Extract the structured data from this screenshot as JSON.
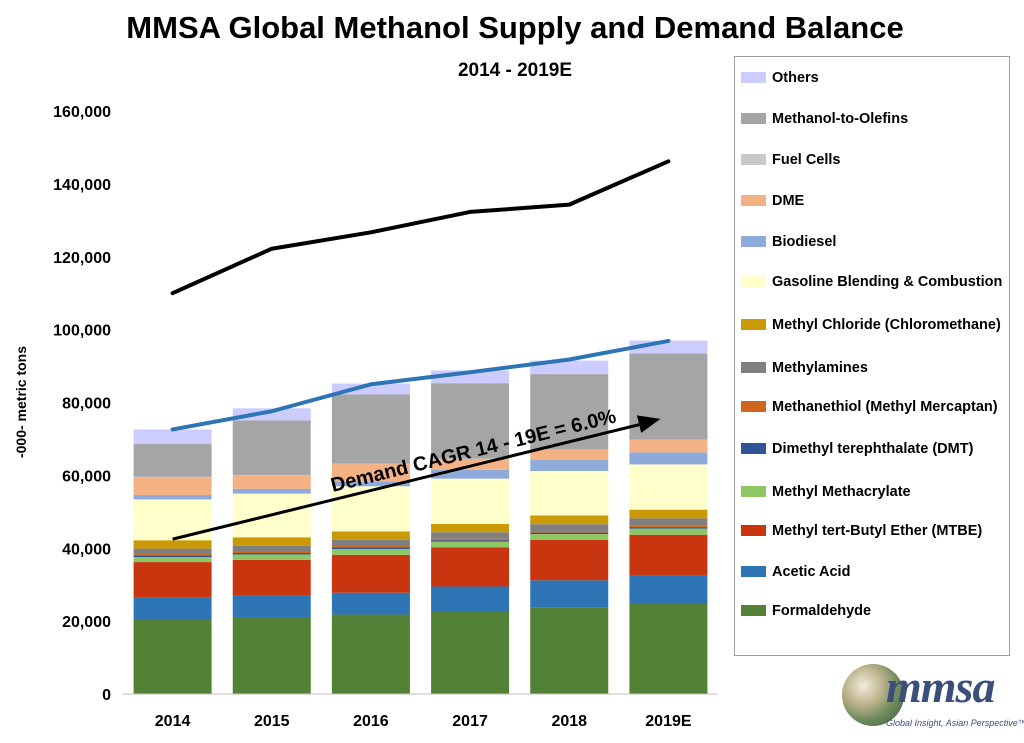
{
  "chart_data": {
    "type": "bar",
    "stacked": true,
    "title": "MMSA Global Methanol Supply and Demand Balance",
    "subtitle": "2014 - 2019E",
    "ylabel": "-000- metric tons",
    "xlabel": "",
    "ylim": [
      0,
      160000
    ],
    "yticks": [
      0,
      20000,
      40000,
      60000,
      80000,
      100000,
      120000,
      140000,
      160000
    ],
    "ytick_labels": [
      "0",
      "20,000",
      "40,000",
      "60,000",
      "80,000",
      "100,000",
      "120,000",
      "140,000",
      "160,000"
    ],
    "grid": false,
    "legend_position": "right",
    "categories": [
      "2014",
      "2015",
      "2016",
      "2017",
      "2018",
      "2019E"
    ],
    "series": [
      {
        "name": "Formaldehyde",
        "color": "#538135",
        "values": [
          20300,
          21000,
          21800,
          22500,
          23700,
          24700
        ]
      },
      {
        "name": "Acetic Acid",
        "color": "#2e75b6",
        "values": [
          6100,
          6000,
          6000,
          7000,
          7500,
          7800
        ]
      },
      {
        "name": "Methyl tert-Butyl Ether (MTBE)",
        "color": "#c9350f",
        "values": [
          9800,
          9800,
          10400,
          10700,
          11100,
          11200
        ]
      },
      {
        "name": "Methyl Methacrylate",
        "color": "#8cc665",
        "values": [
          1400,
          1500,
          1600,
          1600,
          1600,
          1700
        ]
      },
      {
        "name": "Dimethyl terephthalate (DMT)",
        "color": "#2f5597",
        "values": [
          400,
          400,
          400,
          400,
          400,
          400
        ]
      },
      {
        "name": "Methanethiol (Methyl Mercaptan)",
        "color": "#d0661e",
        "values": [
          400,
          400,
          400,
          400,
          400,
          400
        ]
      },
      {
        "name": "Methylamines",
        "color": "#7f7f7f",
        "values": [
          1500,
          1600,
          1700,
          1800,
          1900,
          2000
        ]
      },
      {
        "name": "Methyl Chloride (Chloromethane)",
        "color": "#c99a06",
        "values": [
          2300,
          2300,
          2300,
          2300,
          2400,
          2400
        ]
      },
      {
        "name": "Gasoline Blending & Combustion",
        "color": "#ffffcc",
        "values": [
          11200,
          12000,
          12400,
          12400,
          12200,
          12400
        ]
      },
      {
        "name": "Biodiesel",
        "color": "#8eaadb",
        "values": [
          1200,
          1300,
          1300,
          2400,
          3000,
          3300
        ]
      },
      {
        "name": "DME",
        "color": "#f4b183",
        "values": [
          4900,
          3700,
          4800,
          3000,
          2800,
          3400
        ]
      },
      {
        "name": "Fuel Cells",
        "color": "#c9c9c9",
        "values": [
          100,
          100,
          100,
          100,
          100,
          100
        ]
      },
      {
        "name": "Methanol-to-Olefins",
        "color": "#a5a5a5",
        "values": [
          9000,
          15000,
          19000,
          20700,
          20700,
          23700
        ]
      },
      {
        "name": "Others",
        "color": "#ccccff",
        "values": [
          4000,
          3300,
          3000,
          3500,
          3700,
          3500
        ]
      }
    ],
    "lines": [
      {
        "color": "#000000",
        "values": [
          110000,
          122200,
          126700,
          132300,
          134300,
          146200
        ]
      },
      {
        "color": "#2e75b6",
        "values": [
          72600,
          77600,
          85000,
          88300,
          91800,
          96900
        ]
      }
    ],
    "annotation": {
      "text": "Demand CAGR 14 - 19E = 6.0%",
      "arrow_from": [
        0,
        42500
      ],
      "arrow_to": [
        5,
        75500
      ]
    }
  },
  "legend_order": [
    13,
    12,
    11,
    10,
    9,
    8,
    7,
    6,
    5,
    4,
    3,
    2,
    1,
    0
  ],
  "logo": {
    "text": "mmsa",
    "tagline": "Global Insight, Asian Perspective™"
  }
}
